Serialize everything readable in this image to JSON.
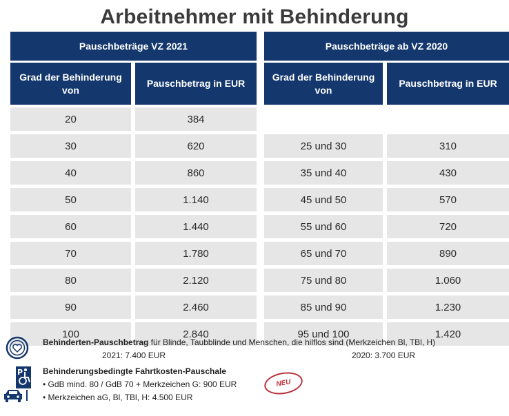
{
  "title": "Arbeitnehmer mit Behinderung",
  "left": {
    "header": "Pauschbeträge VZ 2021",
    "col1": "Grad der Behinderung von",
    "col2": "Pauschbetrag in EUR",
    "rows": [
      [
        "20",
        "384"
      ],
      [
        "30",
        "620"
      ],
      [
        "40",
        "860"
      ],
      [
        "50",
        "1.140"
      ],
      [
        "60",
        "1.440"
      ],
      [
        "70",
        "1.780"
      ],
      [
        "80",
        "2.120"
      ],
      [
        "90",
        "2.460"
      ],
      [
        "100",
        "2.840"
      ]
    ]
  },
  "right": {
    "header": "Pauschbeträge ab VZ 2020",
    "col1": "Grad der Behinderung von",
    "col2": "Pauschbetrag in EUR",
    "rows": [
      [
        "",
        ""
      ],
      [
        "25 und 30",
        "310"
      ],
      [
        "35 und 40",
        "430"
      ],
      [
        "45 und 50",
        "570"
      ],
      [
        "55 und 60",
        "720"
      ],
      [
        "65 und 70",
        "890"
      ],
      [
        "75 und 80",
        "1.060"
      ],
      [
        "85 und 90",
        "1.230"
      ],
      [
        "95 und 100",
        "1.420"
      ]
    ]
  },
  "footer": {
    "line1_bold": "Behinderten-Pauschbetrag",
    "line1_rest": " für Blinde, Taubblinde und Menschen, die hilflos sind (Merkzeichen Bl, TBl, H)",
    "line2_left": "2021: 7.400 EUR",
    "line2_right": "2020: 3.700 EUR",
    "line3": "Behinderungsbedingte Fahrtkosten-Pauschale",
    "bullet1": "• GdB mind. 80 / GdB 70 + Merkzeichen G: 900 EUR",
    "bullet2": "• Merkzeichen aG, Bl, TBl, H: 4.500 EUR",
    "badge": "NEU"
  },
  "icons": [
    "coin-heart-icon",
    "wheelchair-parking-icon",
    "car-icon"
  ],
  "colors": {
    "header": "#14386e",
    "cell": "#e6e6e6",
    "badge": "#b8323c"
  }
}
